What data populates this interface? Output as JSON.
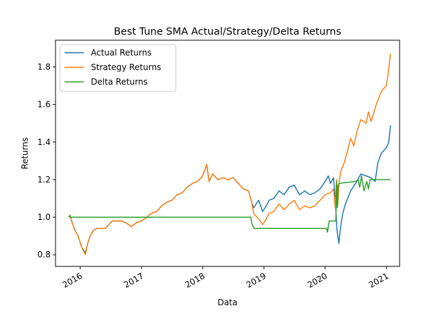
{
  "chart_data": {
    "type": "line",
    "title": "Best Tune SMA Actual/Strategy/Delta Returns",
    "xlabel": "Data",
    "ylabel": "Returns",
    "xlim": [
      "2015-08-07",
      "2021-03-20"
    ],
    "ylim": [
      0.738,
      1.942
    ],
    "x_ticks": [
      "2016-01-01",
      "2017-01-01",
      "2018-01-01",
      "2019-01-01",
      "2020-01-01",
      "2021-01-01"
    ],
    "x_tick_labels": [
      "2016",
      "2017",
      "2018",
      "2019",
      "2020",
      "2021"
    ],
    "y_ticks": [
      0.8,
      1.0,
      1.2,
      1.4,
      1.6,
      1.8
    ],
    "y_tick_labels": [
      "0.8",
      "1.0",
      "1.2",
      "1.4",
      "1.6",
      "1.8"
    ],
    "grid": false,
    "legend_position": "top-left",
    "series": [
      {
        "name": "Actual Returns",
        "color": "#1f77b4",
        "points": [
          [
            "2015-10-26",
            1.0
          ],
          [
            "2015-11-01",
            1.01
          ],
          [
            "2015-11-15",
            0.97
          ],
          [
            "2015-12-01",
            0.93
          ],
          [
            "2015-12-20",
            0.9
          ],
          [
            "2016-01-10",
            0.84
          ],
          [
            "2016-02-01",
            0.81
          ],
          [
            "2016-02-15",
            0.86
          ],
          [
            "2016-03-01",
            0.9
          ],
          [
            "2016-03-20",
            0.93
          ],
          [
            "2016-04-10",
            0.94
          ],
          [
            "2016-05-01",
            0.94
          ],
          [
            "2016-06-01",
            0.94
          ],
          [
            "2016-06-20",
            0.96
          ],
          [
            "2016-07-10",
            0.98
          ],
          [
            "2016-08-01",
            0.98
          ],
          [
            "2016-09-01",
            0.98
          ],
          [
            "2016-10-01",
            0.97
          ],
          [
            "2016-11-01",
            0.95
          ],
          [
            "2016-12-01",
            0.97
          ],
          [
            "2017-01-01",
            0.98
          ],
          [
            "2017-02-01",
            1.0
          ],
          [
            "2017-03-01",
            1.02
          ],
          [
            "2017-04-01",
            1.03
          ],
          [
            "2017-05-01",
            1.06
          ],
          [
            "2017-06-01",
            1.08
          ],
          [
            "2017-07-01",
            1.09
          ],
          [
            "2017-08-01",
            1.12
          ],
          [
            "2017-09-01",
            1.13
          ],
          [
            "2017-10-01",
            1.16
          ],
          [
            "2017-11-01",
            1.18
          ],
          [
            "2017-12-01",
            1.19
          ],
          [
            "2018-01-01",
            1.22
          ],
          [
            "2018-01-25",
            1.28
          ],
          [
            "2018-02-08",
            1.19
          ],
          [
            "2018-03-01",
            1.23
          ],
          [
            "2018-04-01",
            1.2
          ],
          [
            "2018-05-01",
            1.21
          ],
          [
            "2018-06-01",
            1.2
          ],
          [
            "2018-07-01",
            1.21
          ],
          [
            "2018-08-01",
            1.18
          ],
          [
            "2018-09-01",
            1.15
          ],
          [
            "2018-10-01",
            1.14
          ],
          [
            "2018-10-20",
            1.08
          ],
          [
            "2018-11-01",
            1.05
          ],
          [
            "2018-11-15",
            1.07
          ],
          [
            "2018-12-01",
            1.09
          ],
          [
            "2018-12-24",
            1.03
          ],
          [
            "2019-01-15",
            1.06
          ],
          [
            "2019-02-01",
            1.09
          ],
          [
            "2019-03-01",
            1.1
          ],
          [
            "2019-04-01",
            1.14
          ],
          [
            "2019-05-01",
            1.12
          ],
          [
            "2019-06-01",
            1.16
          ],
          [
            "2019-07-01",
            1.17
          ],
          [
            "2019-08-01",
            1.12
          ],
          [
            "2019-09-01",
            1.14
          ],
          [
            "2019-10-01",
            1.12
          ],
          [
            "2019-11-01",
            1.13
          ],
          [
            "2019-12-01",
            1.15
          ],
          [
            "2020-01-01",
            1.19
          ],
          [
            "2020-01-20",
            1.22
          ],
          [
            "2020-02-01",
            1.18
          ],
          [
            "2020-02-20",
            1.21
          ],
          [
            "2020-03-01",
            1.1
          ],
          [
            "2020-03-12",
            0.93
          ],
          [
            "2020-03-23",
            0.86
          ],
          [
            "2020-04-01",
            0.94
          ],
          [
            "2020-04-15",
            1.02
          ],
          [
            "2020-05-01",
            1.07
          ],
          [
            "2020-06-01",
            1.14
          ],
          [
            "2020-07-01",
            1.18
          ],
          [
            "2020-08-01",
            1.23
          ],
          [
            "2020-09-01",
            1.22
          ],
          [
            "2020-10-01",
            1.21
          ],
          [
            "2020-10-25",
            1.19
          ],
          [
            "2020-11-10",
            1.29
          ],
          [
            "2020-12-01",
            1.34
          ],
          [
            "2020-12-31",
            1.37
          ],
          [
            "2021-01-15",
            1.4
          ],
          [
            "2021-01-25",
            1.49
          ]
        ]
      },
      {
        "name": "Strategy Returns",
        "color": "#ff7f0e",
        "points": [
          [
            "2015-10-26",
            1.0
          ],
          [
            "2015-11-01",
            1.01
          ],
          [
            "2015-11-15",
            0.97
          ],
          [
            "2015-12-01",
            0.93
          ],
          [
            "2015-12-20",
            0.9
          ],
          [
            "2016-01-10",
            0.84
          ],
          [
            "2016-02-01",
            0.8
          ],
          [
            "2016-02-15",
            0.86
          ],
          [
            "2016-03-01",
            0.9
          ],
          [
            "2016-03-20",
            0.93
          ],
          [
            "2016-04-10",
            0.94
          ],
          [
            "2016-05-01",
            0.94
          ],
          [
            "2016-06-01",
            0.94
          ],
          [
            "2016-06-20",
            0.96
          ],
          [
            "2016-07-10",
            0.98
          ],
          [
            "2016-08-01",
            0.98
          ],
          [
            "2016-09-01",
            0.98
          ],
          [
            "2016-10-01",
            0.97
          ],
          [
            "2016-11-01",
            0.95
          ],
          [
            "2016-12-01",
            0.97
          ],
          [
            "2017-01-01",
            0.98
          ],
          [
            "2017-02-01",
            1.0
          ],
          [
            "2017-03-01",
            1.02
          ],
          [
            "2017-04-01",
            1.03
          ],
          [
            "2017-05-01",
            1.06
          ],
          [
            "2017-06-01",
            1.08
          ],
          [
            "2017-07-01",
            1.09
          ],
          [
            "2017-08-01",
            1.12
          ],
          [
            "2017-09-01",
            1.13
          ],
          [
            "2017-10-01",
            1.16
          ],
          [
            "2017-11-01",
            1.18
          ],
          [
            "2017-12-01",
            1.19
          ],
          [
            "2018-01-01",
            1.22
          ],
          [
            "2018-01-25",
            1.28
          ],
          [
            "2018-02-08",
            1.19
          ],
          [
            "2018-03-01",
            1.23
          ],
          [
            "2018-04-01",
            1.2
          ],
          [
            "2018-05-01",
            1.21
          ],
          [
            "2018-06-01",
            1.2
          ],
          [
            "2018-07-01",
            1.21
          ],
          [
            "2018-08-01",
            1.18
          ],
          [
            "2018-09-01",
            1.15
          ],
          [
            "2018-10-01",
            1.14
          ],
          [
            "2018-10-20",
            1.08
          ],
          [
            "2018-11-01",
            1.02
          ],
          [
            "2018-11-20",
            1.0
          ],
          [
            "2018-12-10",
            0.98
          ],
          [
            "2018-12-24",
            0.96
          ],
          [
            "2019-01-15",
            0.99
          ],
          [
            "2019-02-01",
            1.02
          ],
          [
            "2019-03-01",
            1.03
          ],
          [
            "2019-04-01",
            1.07
          ],
          [
            "2019-05-01",
            1.04
          ],
          [
            "2019-06-01",
            1.07
          ],
          [
            "2019-07-01",
            1.09
          ],
          [
            "2019-08-01",
            1.04
          ],
          [
            "2019-09-01",
            1.06
          ],
          [
            "2019-10-01",
            1.05
          ],
          [
            "2019-11-01",
            1.06
          ],
          [
            "2019-12-01",
            1.09
          ],
          [
            "2020-01-01",
            1.12
          ],
          [
            "2020-02-01",
            1.13
          ],
          [
            "2020-02-20",
            1.15
          ],
          [
            "2020-03-01",
            1.05
          ],
          [
            "2020-03-09",
            1.2
          ],
          [
            "2020-03-16",
            1.06
          ],
          [
            "2020-03-25",
            1.19
          ],
          [
            "2020-04-05",
            1.25
          ],
          [
            "2020-04-20",
            1.28
          ],
          [
            "2020-05-10",
            1.34
          ],
          [
            "2020-06-01",
            1.42
          ],
          [
            "2020-06-20",
            1.38
          ],
          [
            "2020-07-10",
            1.46
          ],
          [
            "2020-08-01",
            1.52
          ],
          [
            "2020-09-01",
            1.5
          ],
          [
            "2020-09-15",
            1.56
          ],
          [
            "2020-10-01",
            1.51
          ],
          [
            "2020-11-01",
            1.6
          ],
          [
            "2020-12-01",
            1.67
          ],
          [
            "2020-12-31",
            1.7
          ],
          [
            "2021-01-10",
            1.76
          ],
          [
            "2021-01-25",
            1.87
          ]
        ]
      },
      {
        "name": "Delta Returns",
        "color": "#2ca02c",
        "points": [
          [
            "2015-10-26",
            1.0
          ],
          [
            "2015-11-01",
            1.01
          ],
          [
            "2015-11-05",
            1.0
          ],
          [
            "2018-10-15",
            1.0
          ],
          [
            "2018-10-20",
            0.97
          ],
          [
            "2018-10-28",
            0.95
          ],
          [
            "2018-11-05",
            0.94
          ],
          [
            "2020-01-10",
            0.94
          ],
          [
            "2020-01-15",
            0.92
          ],
          [
            "2020-01-25",
            0.98
          ],
          [
            "2020-03-05",
            0.98
          ],
          [
            "2020-03-10",
            1.19
          ],
          [
            "2020-03-14",
            1.05
          ],
          [
            "2020-03-18",
            1.17
          ],
          [
            "2020-03-25",
            1.18
          ],
          [
            "2020-07-01",
            1.19
          ],
          [
            "2020-07-15",
            1.2
          ],
          [
            "2020-07-25",
            1.16
          ],
          [
            "2020-08-05",
            1.22
          ],
          [
            "2020-08-20",
            1.14
          ],
          [
            "2020-09-05",
            1.19
          ],
          [
            "2020-09-15",
            1.15
          ],
          [
            "2020-09-25",
            1.2
          ],
          [
            "2021-01-25",
            1.2
          ]
        ]
      }
    ]
  }
}
